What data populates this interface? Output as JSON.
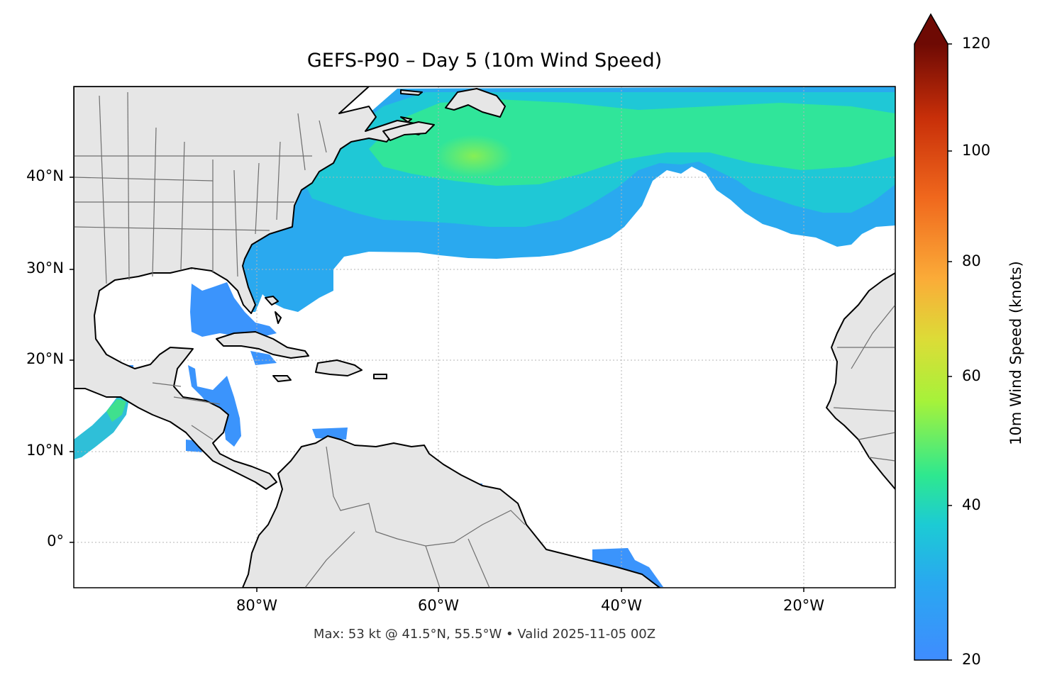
{
  "title": "GEFS-P90 – Day 5 (10m Wind Speed)",
  "subtitle": "Max: 53 kt @ 41.5°N, 55.5°W • Valid 2025-11-05 00Z",
  "map": {
    "lat_ticks": [
      "40°N",
      "30°N",
      "20°N",
      "10°N",
      "0°"
    ],
    "lon_ticks": [
      "80°W",
      "60°W",
      "40°W",
      "20°W"
    ],
    "land_color": "#e6e6e6",
    "coast_color": "#000000",
    "border_color": "#6f6f6f",
    "grid": "dotted"
  },
  "colorbar": {
    "label": "10m Wind Speed (knots)",
    "ticks": [
      "20",
      "40",
      "60",
      "80",
      "100",
      "120"
    ],
    "min": 20,
    "max": 120,
    "extend": "max",
    "colormap": [
      "#3f8cff",
      "#1ccbd4",
      "#2ee88f",
      "#a6f23a",
      "#dcdc37",
      "#fbab38",
      "#f0681d",
      "#c82f09",
      "#6e0a04"
    ]
  },
  "chart_data": {
    "type": "heatmap",
    "title": "GEFS-P90 – Day 5 (10m Wind Speed)",
    "xlabel": "",
    "ylabel": "",
    "xlim": [
      -100,
      -10
    ],
    "ylim": [
      -5,
      50
    ],
    "colorbar_range": [
      20,
      120
    ],
    "max_value": 53,
    "max_location": {
      "lat": 41.5,
      "lon": -55.5
    }
  }
}
